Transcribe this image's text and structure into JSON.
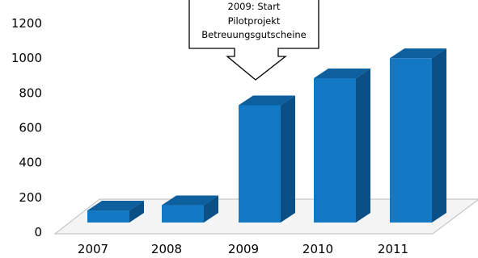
{
  "chart_data": {
    "type": "bar",
    "categories": [
      "2007",
      "2008",
      "2009",
      "2010",
      "2011"
    ],
    "values": [
      125,
      155,
      730,
      885,
      1000
    ],
    "ylim": [
      0,
      1200
    ],
    "yticks": [
      "0",
      "200",
      "400",
      "600",
      "800",
      "1000",
      "1200"
    ],
    "grid": false,
    "style": "3d",
    "bar_color": "#1479c4",
    "bar_top_color": "#0d5f9e",
    "bar_side_color": "#0a4f86",
    "annotation": {
      "lines": [
        "2009: Start",
        "Pilotprojekt",
        "Betreuungsgutscheine"
      ],
      "target_category": "2009"
    }
  }
}
